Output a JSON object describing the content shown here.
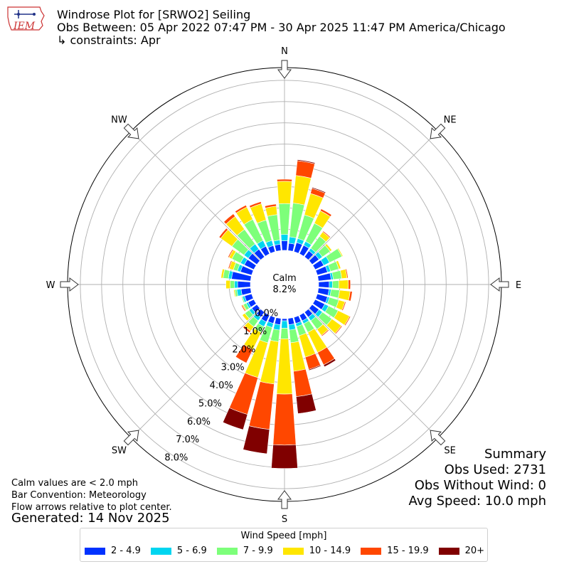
{
  "title": {
    "line1": "Windrose Plot for [SRWO2] Seiling",
    "line2": "Obs Between: 05 Apr 2022 07:47 PM - 30 Apr 2025 11:47 PM America/Chicago",
    "line3": "↳ constraints: Apr"
  },
  "logo": {
    "text": "IEM"
  },
  "directions": [
    "N",
    "NE",
    "E",
    "SE",
    "S",
    "SW",
    "W",
    "NW"
  ],
  "calm": {
    "label": "Calm",
    "value": "8.2%"
  },
  "notes": [
    "Calm values are < 2.0 mph",
    "Bar Convention: Meteorology",
    "Flow arrows relative to plot center."
  ],
  "generated": "Generated: 14 Nov 2025",
  "summary": {
    "heading": "Summary",
    "obs_used": "Obs Used: 2731",
    "obs_without_wind": "Obs Without Wind: 0",
    "avg_speed": "Avg Speed: 10.0 mph"
  },
  "legend": {
    "title": "Wind Speed [mph]",
    "items": [
      {
        "label": "2 - 4.9",
        "color": "#0032ff"
      },
      {
        "label": "5 - 6.9",
        "color": "#00d5f0"
      },
      {
        "label": "7 - 9.9",
        "color": "#7dff7a"
      },
      {
        "label": "10 - 14.9",
        "color": "#ffe600"
      },
      {
        "label": "15 - 19.9",
        "color": "#ff4700"
      },
      {
        "label": "20+",
        "color": "#800000"
      }
    ]
  },
  "chart_data": {
    "type": "windrose",
    "radial_ticks": [
      "0.0%",
      "1.0%",
      "2.0%",
      "3.0%",
      "4.0%",
      "5.0%",
      "6.0%",
      "7.0%",
      "8.0%"
    ],
    "radial_range": [
      0,
      8.6
    ],
    "grid": true,
    "bin_width_deg": 10,
    "speed_bins": [
      "2 - 4.9",
      "5 - 6.9",
      "7 - 9.9",
      "10 - 14.9",
      "15 - 19.9",
      "20+"
    ],
    "bins": [
      {
        "dir": 0,
        "values": [
          0.45,
          0.3,
          1.45,
          1.05,
          0.1,
          0
        ]
      },
      {
        "dir": 10,
        "values": [
          0.35,
          0.3,
          1.6,
          1.3,
          0.7,
          0.05
        ]
      },
      {
        "dir": 20,
        "values": [
          0.45,
          0.2,
          1.15,
          1.05,
          0.25,
          0.05
        ]
      },
      {
        "dir": 30,
        "values": [
          0.45,
          0.2,
          0.95,
          0.65,
          0.1,
          0
        ]
      },
      {
        "dir": 40,
        "values": [
          0.35,
          0.15,
          0.7,
          0.25,
          0.05,
          0
        ]
      },
      {
        "dir": 50,
        "values": [
          0.4,
          0.2,
          0.45,
          0.1,
          0.02,
          0
        ]
      },
      {
        "dir": 60,
        "values": [
          0.45,
          0.3,
          0.65,
          0.05,
          0,
          0
        ]
      },
      {
        "dir": 70,
        "values": [
          0.5,
          0.15,
          0.4,
          0.1,
          0,
          0
        ]
      },
      {
        "dir": 80,
        "values": [
          0.6,
          0.1,
          0.4,
          0.25,
          0.05,
          0
        ]
      },
      {
        "dir": 90,
        "values": [
          0.5,
          0.15,
          0.3,
          0.45,
          0.1,
          0
        ]
      },
      {
        "dir": 100,
        "values": [
          0.5,
          0.1,
          0.4,
          0.5,
          0.1,
          0
        ]
      },
      {
        "dir": 110,
        "values": [
          0.5,
          0.1,
          0.45,
          0.3,
          0.05,
          0
        ]
      },
      {
        "dir": 120,
        "values": [
          0.5,
          0.2,
          0.5,
          0.6,
          0.05,
          0
        ]
      },
      {
        "dir": 130,
        "values": [
          0.4,
          0.2,
          0.55,
          0.55,
          0.05,
          0
        ]
      },
      {
        "dir": 140,
        "values": [
          0.3,
          0.2,
          0.5,
          0.35,
          0.05,
          0
        ]
      },
      {
        "dir": 150,
        "values": [
          0.3,
          0.15,
          0.45,
          1.05,
          0.65,
          0.1
        ]
      },
      {
        "dir": 160,
        "values": [
          0.3,
          0.15,
          0.45,
          1.05,
          0.6,
          0.05
        ]
      },
      {
        "dir": 170,
        "values": [
          0.3,
          0.25,
          0.6,
          1.35,
          1.2,
          0.8
        ]
      },
      {
        "dir": 180,
        "values": [
          0.1,
          0.35,
          0.5,
          2.6,
          2.4,
          1.1
        ]
      },
      {
        "dir": 190,
        "values": [
          0.3,
          0.25,
          0.55,
          2.0,
          2.15,
          1.15
        ]
      },
      {
        "dir": 200,
        "values": [
          0.3,
          0.2,
          0.75,
          1.7,
          1.8,
          0.75
        ]
      },
      {
        "dir": 210,
        "values": [
          0.35,
          0.25,
          0.3,
          0.9,
          0.7,
          0
        ]
      },
      {
        "dir": 220,
        "values": [
          0.3,
          0.2,
          0.35,
          0.25,
          0.1,
          0
        ]
      },
      {
        "dir": 230,
        "values": [
          0.3,
          0.15,
          0.25,
          0.15,
          0.02,
          0
        ]
      },
      {
        "dir": 240,
        "values": [
          0.3,
          0.1,
          0.15,
          0.05,
          0.05,
          0
        ]
      },
      {
        "dir": 250,
        "values": [
          0.35,
          0.1,
          0.05,
          0,
          0,
          0
        ]
      },
      {
        "dir": 260,
        "values": [
          0.45,
          0.2,
          0.1,
          0.05,
          0,
          0
        ]
      },
      {
        "dir": 270,
        "values": [
          0.6,
          0.15,
          0.2,
          0.2,
          0,
          0
        ]
      },
      {
        "dir": 280,
        "values": [
          0.9,
          0.15,
          0.25,
          0.1,
          0.02,
          0
        ]
      },
      {
        "dir": 290,
        "values": [
          0.55,
          0.15,
          0.2,
          0.2,
          0.05,
          0
        ]
      },
      {
        "dir": 300,
        "values": [
          0.5,
          0.2,
          0.45,
          0.15,
          0.05,
          0
        ]
      },
      {
        "dir": 310,
        "values": [
          0.5,
          0.25,
          0.7,
          0.65,
          0.1,
          0
        ]
      },
      {
        "dir": 320,
        "values": [
          0.45,
          0.3,
          0.85,
          0.75,
          0.15,
          0
        ]
      },
      {
        "dir": 330,
        "values": [
          0.4,
          0.3,
          1.1,
          0.65,
          0.1,
          0
        ]
      },
      {
        "dir": 340,
        "values": [
          0.3,
          0.25,
          1.0,
          0.8,
          0.1,
          0
        ]
      },
      {
        "dir": 350,
        "values": [
          0.3,
          0.2,
          1.2,
          0.4,
          0.1,
          0
        ]
      }
    ]
  }
}
